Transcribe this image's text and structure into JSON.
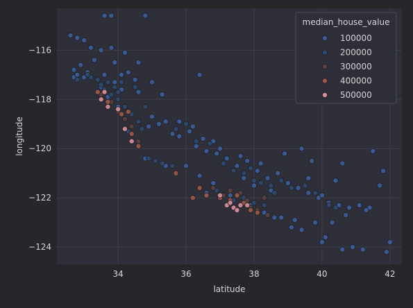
{
  "chart_data": {
    "type": "scatter",
    "xlabel": "latitude",
    "ylabel": "longitude",
    "xlim": [
      32.2,
      42.35
    ],
    "ylim": [
      -124.7,
      -114.3
    ],
    "xticks": [
      34,
      36,
      38,
      40,
      42
    ],
    "yticks": [
      -116,
      -118,
      -120,
      -122,
      -124
    ],
    "grid": true,
    "legend": {
      "title": "median_house_value",
      "position": "top-right",
      "entries": [
        {
          "label": "100000",
          "color": "#3b5e9a"
        },
        {
          "label": "200000",
          "color": "#2d4a6e"
        },
        {
          "label": "300000",
          "color": "#5b4140"
        },
        {
          "label": "400000",
          "color": "#a0574a"
        },
        {
          "label": "500000",
          "color": "#d9909a"
        }
      ]
    },
    "series": [
      {
        "value": 100000,
        "color": "#3b5e9a",
        "points": [
          [
            32.6,
            -115.4
          ],
          [
            32.8,
            -115.5
          ],
          [
            33.0,
            -115.6
          ],
          [
            32.9,
            -116.6
          ],
          [
            33.1,
            -116.9
          ],
          [
            33.0,
            -117.1
          ],
          [
            32.7,
            -117.1
          ],
          [
            33.3,
            -116.4
          ],
          [
            33.6,
            -114.6
          ],
          [
            33.8,
            -114.6
          ],
          [
            34.8,
            -114.6
          ],
          [
            33.8,
            -115.9
          ],
          [
            34.2,
            -116.1
          ],
          [
            34.6,
            -116.5
          ],
          [
            34.3,
            -116.9
          ],
          [
            33.9,
            -117.3
          ],
          [
            34.1,
            -117.6
          ],
          [
            33.7,
            -117.9
          ],
          [
            34.5,
            -117.2
          ],
          [
            35.0,
            -118.7
          ],
          [
            35.4,
            -118.9
          ],
          [
            35.2,
            -119.0
          ],
          [
            34.9,
            -119.1
          ],
          [
            35.6,
            -119.4
          ],
          [
            35.8,
            -119.5
          ],
          [
            36.1,
            -119.3
          ],
          [
            36.5,
            -119.6
          ],
          [
            36.3,
            -119.9
          ],
          [
            36.6,
            -120.1
          ],
          [
            36.9,
            -120.2
          ],
          [
            37.2,
            -120.4
          ],
          [
            37.5,
            -120.7
          ],
          [
            37.8,
            -120.5
          ],
          [
            38.1,
            -120.9
          ],
          [
            38.4,
            -121.2
          ],
          [
            38.7,
            -121.0
          ],
          [
            39.0,
            -121.4
          ],
          [
            39.3,
            -121.6
          ],
          [
            39.6,
            -121.8
          ],
          [
            39.9,
            -122.0
          ],
          [
            40.2,
            -122.2
          ],
          [
            40.5,
            -122.3
          ],
          [
            40.8,
            -122.4
          ],
          [
            41.1,
            -122.3
          ],
          [
            41.4,
            -122.4
          ],
          [
            41.7,
            -121.5
          ],
          [
            41.8,
            -120.9
          ],
          [
            41.5,
            -120.1
          ],
          [
            40.6,
            -120.6
          ],
          [
            40.4,
            -121.3
          ],
          [
            39.7,
            -120.5
          ],
          [
            40.1,
            -123.6
          ],
          [
            40.6,
            -124.1
          ],
          [
            40.9,
            -124.0
          ],
          [
            41.2,
            -124.1
          ],
          [
            41.9,
            -124.2
          ],
          [
            42.0,
            -123.8
          ],
          [
            40.0,
            -123.8
          ],
          [
            39.4,
            -123.3
          ],
          [
            39.1,
            -123.2
          ],
          [
            38.6,
            -122.8
          ],
          [
            38.3,
            -122.6
          ],
          [
            37.9,
            -122.3
          ],
          [
            37.3,
            -121.9
          ],
          [
            36.6,
            -121.8
          ],
          [
            36.4,
            -121.1
          ],
          [
            36.0,
            -120.7
          ],
          [
            35.4,
            -120.7
          ],
          [
            34.8,
            -120.4
          ],
          [
            38.8,
            -122.8
          ],
          [
            39.2,
            -122.9
          ],
          [
            39.8,
            -123.0
          ],
          [
            40.3,
            -123.0
          ],
          [
            38.2,
            -120.6
          ],
          [
            37.6,
            -120.3
          ],
          [
            37.0,
            -120.0
          ],
          [
            36.8,
            -119.7
          ],
          [
            36.2,
            -119.1
          ],
          [
            35.8,
            -118.9
          ],
          [
            35.3,
            -117.8
          ],
          [
            34.1,
            -117.0
          ],
          [
            33.9,
            -116.5
          ],
          [
            33.5,
            -116.0
          ],
          [
            34.6,
            -117.7
          ],
          [
            35.0,
            -117.3
          ],
          [
            36.4,
            -117.0
          ],
          [
            34.0,
            -118.3
          ],
          [
            33.5,
            -117.5
          ],
          [
            32.8,
            -117.0
          ],
          [
            38.9,
            -120.2
          ],
          [
            39.4,
            -120.0
          ],
          [
            40.7,
            -122.7
          ],
          [
            41.3,
            -122.5
          ],
          [
            38.5,
            -121.7
          ],
          [
            39.6,
            -121.2
          ],
          [
            40.0,
            -121.9
          ],
          [
            37.7,
            -121.2
          ],
          [
            38.0,
            -121.5
          ],
          [
            36.8,
            -121.4
          ],
          [
            33.2,
            -115.9
          ],
          [
            32.7,
            -116.8
          ],
          [
            33.6,
            -117.0
          ]
        ]
      },
      {
        "value": 200000,
        "color": "#2d4a6e",
        "points": [
          [
            33.2,
            -117.1
          ],
          [
            33.4,
            -117.2
          ],
          [
            33.6,
            -117.6
          ],
          [
            33.8,
            -117.8
          ],
          [
            34.0,
            -118.0
          ],
          [
            34.2,
            -118.3
          ],
          [
            34.4,
            -118.6
          ],
          [
            34.6,
            -118.9
          ],
          [
            34.7,
            -119.2
          ],
          [
            35.1,
            -120.5
          ],
          [
            35.3,
            -120.6
          ],
          [
            35.6,
            -120.7
          ],
          [
            34.3,
            -119.3
          ],
          [
            34.1,
            -117.3
          ],
          [
            33.9,
            -117.5
          ],
          [
            33.5,
            -117.4
          ],
          [
            33.1,
            -117.0
          ],
          [
            32.8,
            -117.2
          ],
          [
            34.9,
            -120.4
          ],
          [
            36.0,
            -119.0
          ],
          [
            36.7,
            -119.8
          ],
          [
            37.1,
            -120.6
          ],
          [
            37.4,
            -120.9
          ],
          [
            37.7,
            -121.0
          ],
          [
            38.0,
            -121.3
          ],
          [
            38.2,
            -121.4
          ],
          [
            38.5,
            -121.5
          ],
          [
            38.8,
            -121.3
          ],
          [
            39.1,
            -121.6
          ],
          [
            39.5,
            -121.5
          ],
          [
            40.2,
            -122.3
          ],
          [
            37.0,
            -122.0
          ],
          [
            37.4,
            -122.1
          ],
          [
            37.7,
            -122.0
          ],
          [
            38.0,
            -122.2
          ],
          [
            38.3,
            -122.3
          ],
          [
            36.6,
            -121.9
          ],
          [
            36.9,
            -121.7
          ],
          [
            39.8,
            -121.8
          ],
          [
            40.4,
            -122.4
          ],
          [
            38.6,
            -121.8
          ],
          [
            37.9,
            -120.8
          ],
          [
            36.3,
            -119.7
          ],
          [
            35.7,
            -119.2
          ],
          [
            34.5,
            -117.5
          ],
          [
            34.8,
            -118.3
          ],
          [
            33.7,
            -117.3
          ],
          [
            34.0,
            -117.7
          ]
        ]
      },
      {
        "value": 300000,
        "color": "#5b4140",
        "points": [
          [
            33.8,
            -118.1
          ],
          [
            34.0,
            -118.5
          ],
          [
            34.2,
            -118.8
          ],
          [
            34.4,
            -119.1
          ],
          [
            34.6,
            -119.7
          ],
          [
            37.3,
            -121.7
          ],
          [
            37.6,
            -121.8
          ],
          [
            37.8,
            -122.1
          ],
          [
            38.1,
            -122.5
          ],
          [
            38.4,
            -122.7
          ],
          [
            36.8,
            -121.6
          ],
          [
            33.5,
            -117.8
          ],
          [
            37.1,
            -121.9
          ],
          [
            37.9,
            -122.4
          ],
          [
            38.3,
            -122.0
          ]
        ]
      },
      {
        "value": 400000,
        "color": "#a0574a",
        "points": [
          [
            33.4,
            -117.7
          ],
          [
            33.7,
            -118.1
          ],
          [
            34.1,
            -118.6
          ],
          [
            34.4,
            -119.4
          ],
          [
            34.6,
            -119.9
          ],
          [
            36.4,
            -121.6
          ],
          [
            36.6,
            -121.9
          ],
          [
            37.0,
            -122.0
          ],
          [
            37.3,
            -122.1
          ],
          [
            37.5,
            -121.9
          ],
          [
            37.7,
            -122.2
          ],
          [
            37.9,
            -122.5
          ],
          [
            38.1,
            -122.6
          ],
          [
            36.2,
            -122.0
          ],
          [
            35.7,
            -121.0
          ],
          [
            34.3,
            -118.5
          ]
        ]
      },
      {
        "value": 500000,
        "color": "#d9909a",
        "points": [
          [
            33.5,
            -118.0
          ],
          [
            33.6,
            -117.7
          ],
          [
            33.7,
            -118.3
          ],
          [
            34.0,
            -118.4
          ],
          [
            34.2,
            -119.2
          ],
          [
            34.4,
            -119.7
          ],
          [
            37.2,
            -122.3
          ],
          [
            37.4,
            -122.4
          ],
          [
            37.5,
            -122.5
          ],
          [
            37.6,
            -122.3
          ],
          [
            37.8,
            -122.3
          ],
          [
            37.3,
            -122.2
          ],
          [
            37.0,
            -121.9
          ]
        ]
      }
    ]
  }
}
